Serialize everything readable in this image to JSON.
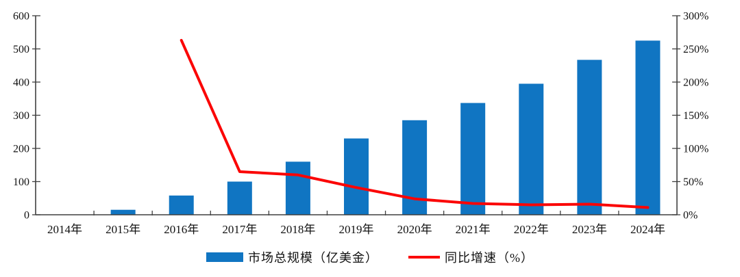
{
  "page": {
    "background": "#ffffff",
    "text_color": "#111111",
    "axis_color": "#3f3f3f"
  },
  "chart_data": {
    "type": "bar",
    "subtype": "bar+line combo",
    "categories": [
      "2014年",
      "2015年",
      "2016年",
      "2017年",
      "2018年",
      "2019年",
      "2020年",
      "2021年",
      "2022年",
      "2023年",
      "2024年"
    ],
    "series": [
      {
        "name": "市场总规模（亿美金）",
        "type": "bar",
        "axis": "left",
        "color": "#1075c2",
        "values": [
          1,
          15,
          58,
          100,
          160,
          230,
          285,
          337,
          395,
          467,
          525
        ]
      },
      {
        "name": "同比增速（%）",
        "type": "line",
        "axis": "right",
        "color": "#fb0505",
        "values": [
          null,
          null,
          263,
          65,
          60,
          41,
          24,
          17,
          15,
          16,
          11
        ]
      }
    ],
    "left_axis": {
      "min": 0,
      "max": 600,
      "tick_values": [
        600,
        500,
        400,
        300,
        200,
        100,
        0
      ],
      "tick_labels": [
        "600",
        "500",
        "400",
        "300",
        "200",
        "100",
        "0"
      ]
    },
    "right_axis": {
      "min": 0,
      "max": 300,
      "tick_values": [
        300,
        250,
        200,
        150,
        100,
        50,
        0
      ],
      "tick_labels": [
        "300%",
        "250%",
        "200%",
        "150%",
        "100%",
        "50%",
        "0%"
      ]
    },
    "grid": false,
    "legend_position": "bottom-center",
    "legend": [
      {
        "label": "市场总规模（亿美金）",
        "swatch": "bar",
        "color": "#1075c2"
      },
      {
        "label": "同比增速（%）",
        "swatch": "line",
        "color": "#fb0505"
      }
    ],
    "title": "",
    "xlabel": "",
    "ylabel": ""
  }
}
